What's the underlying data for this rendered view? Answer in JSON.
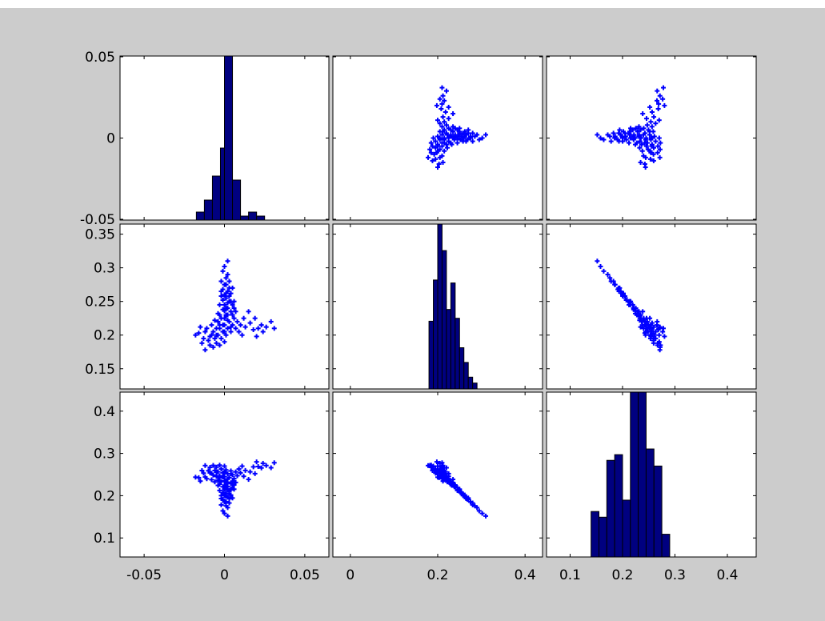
{
  "figure": {
    "background": "#cccccc",
    "axes_background": "#ffffff",
    "histogram_fill": "#000080",
    "histogram_edge": "#000000",
    "marker_color": "#0000ff",
    "marker": "plus"
  },
  "chart_data": {
    "type": "scatter-matrix",
    "title": "",
    "variables": 3,
    "ranges": [
      [
        -0.065,
        0.065
      ],
      [
        -0.04,
        0.44
      ],
      [
        0.055,
        0.455
      ]
    ],
    "row_ticks": [
      [
        {
          "v": -0.05,
          "label": "-0.05"
        },
        {
          "v": 0,
          "label": "0"
        },
        {
          "v": 0.05,
          "label": "0.05"
        }
      ],
      [
        {
          "v": 0.15,
          "label": "0.15"
        },
        {
          "v": 0.2,
          "label": "0.2"
        },
        {
          "v": 0.25,
          "label": "0.25"
        },
        {
          "v": 0.3,
          "label": "0.3"
        },
        {
          "v": 0.35,
          "label": "0.35"
        }
      ],
      [
        {
          "v": 0.1,
          "label": "0.1"
        },
        {
          "v": 0.2,
          "label": "0.2"
        },
        {
          "v": 0.3,
          "label": "0.3"
        },
        {
          "v": 0.4,
          "label": "0.4"
        }
      ]
    ],
    "col_ticks": [
      [
        {
          "v": -0.05,
          "label": "-0.05"
        },
        {
          "v": 0,
          "label": "0"
        },
        {
          "v": 0.05,
          "label": "0.05"
        }
      ],
      [
        {
          "v": 0,
          "label": "0"
        },
        {
          "v": 0.2,
          "label": "0.2"
        },
        {
          "v": 0.4,
          "label": "0.4"
        }
      ],
      [
        {
          "v": 0.1,
          "label": "0.1"
        },
        {
          "v": 0.2,
          "label": "0.2"
        },
        {
          "v": 0.3,
          "label": "0.3"
        },
        {
          "v": 0.4,
          "label": "0.4"
        }
      ]
    ],
    "row_ylims": [
      [
        -0.0505,
        0.0505
      ],
      [
        0.12,
        0.365
      ],
      [
        0.055,
        0.445
      ]
    ],
    "histograms": [
      {
        "var": 0,
        "bin_width": 0.005,
        "bins": [
          {
            "x0": -0.0175,
            "count": 2
          },
          {
            "x0": -0.0125,
            "count": 5
          },
          {
            "x0": -0.0075,
            "count": 11
          },
          {
            "x0": -0.0025,
            "count": 18
          },
          {
            "x0": 0.0,
            "count": 41
          },
          {
            "x0": 0.005,
            "count": 10
          },
          {
            "x0": 0.01,
            "count": 1
          },
          {
            "x0": 0.015,
            "count": 2
          },
          {
            "x0": 0.02,
            "count": 1
          }
        ],
        "max_count": 41
      },
      {
        "var": 1,
        "bin_width": 0.01,
        "bins": [
          {
            "x0": 0.18,
            "count": 23
          },
          {
            "x0": 0.19,
            "count": 37
          },
          {
            "x0": 0.2,
            "count": 56
          },
          {
            "x0": 0.21,
            "count": 47
          },
          {
            "x0": 0.22,
            "count": 27
          },
          {
            "x0": 0.23,
            "count": 36
          },
          {
            "x0": 0.24,
            "count": 24
          },
          {
            "x0": 0.25,
            "count": 14
          },
          {
            "x0": 0.26,
            "count": 9
          },
          {
            "x0": 0.27,
            "count": 4
          },
          {
            "x0": 0.28,
            "count": 2
          }
        ],
        "max_count": 56
      },
      {
        "var": 2,
        "bin_width": 0.015,
        "bins": [
          {
            "x0": 0.14,
            "count": 8
          },
          {
            "x0": 0.155,
            "count": 7
          },
          {
            "x0": 0.17,
            "count": 17
          },
          {
            "x0": 0.185,
            "count": 18
          },
          {
            "x0": 0.2,
            "count": 10
          },
          {
            "x0": 0.215,
            "count": 29
          },
          {
            "x0": 0.23,
            "count": 29
          },
          {
            "x0": 0.245,
            "count": 19
          },
          {
            "x0": 0.26,
            "count": 16
          },
          {
            "x0": 0.275,
            "count": 4
          }
        ],
        "max_count": 29
      }
    ],
    "variable_points": [
      [
        -0.016,
        0.203
      ],
      [
        -0.014,
        0.188
      ],
      [
        -0.013,
        0.195
      ],
      [
        -0.012,
        0.178
      ],
      [
        -0.011,
        0.21
      ],
      [
        -0.01,
        0.192
      ],
      [
        -0.009,
        0.185
      ],
      [
        -0.008,
        0.2
      ],
      [
        -0.008,
        0.215
      ],
      [
        -0.007,
        0.182
      ],
      [
        -0.007,
        0.205
      ],
      [
        -0.006,
        0.195
      ],
      [
        -0.006,
        0.222
      ],
      [
        -0.005,
        0.188
      ],
      [
        -0.005,
        0.21
      ],
      [
        -0.004,
        0.2
      ],
      [
        -0.004,
        0.232
      ],
      [
        -0.003,
        0.185
      ],
      [
        -0.003,
        0.215
      ],
      [
        -0.003,
        0.245
      ],
      [
        -0.002,
        0.195
      ],
      [
        -0.002,
        0.225
      ],
      [
        -0.002,
        0.258
      ],
      [
        -0.001,
        0.205
      ],
      [
        -0.001,
        0.238
      ],
      [
        -0.001,
        0.268
      ],
      [
        0.0,
        0.19
      ],
      [
        0.0,
        0.215
      ],
      [
        0.0,
        0.245
      ],
      [
        0.0,
        0.275
      ],
      [
        0.001,
        0.2
      ],
      [
        0.001,
        0.228
      ],
      [
        0.001,
        0.255
      ],
      [
        0.001,
        0.285
      ],
      [
        0.002,
        0.21
      ],
      [
        0.002,
        0.24
      ],
      [
        0.002,
        0.265
      ],
      [
        0.002,
        0.31
      ],
      [
        0.003,
        0.22
      ],
      [
        0.003,
        0.25
      ],
      [
        0.003,
        0.28
      ],
      [
        0.004,
        0.205
      ],
      [
        0.004,
        0.235
      ],
      [
        0.004,
        0.262
      ],
      [
        0.005,
        0.215
      ],
      [
        0.005,
        0.245
      ],
      [
        0.005,
        0.27
      ],
      [
        0.006,
        0.225
      ],
      [
        0.006,
        0.25
      ],
      [
        0.007,
        0.21
      ],
      [
        0.007,
        0.235
      ],
      [
        0.008,
        0.22
      ],
      [
        0.009,
        0.205
      ],
      [
        0.01,
        0.215
      ],
      [
        0.011,
        0.2
      ],
      [
        0.012,
        0.225
      ],
      [
        0.013,
        0.212
      ],
      [
        0.015,
        0.235
      ],
      [
        0.016,
        0.218
      ],
      [
        0.018,
        0.208
      ],
      [
        0.019,
        0.225
      ],
      [
        0.02,
        0.198
      ],
      [
        0.021,
        0.21
      ],
      [
        0.023,
        0.215
      ],
      [
        0.024,
        0.205
      ],
      [
        0.026,
        0.212
      ],
      [
        0.029,
        0.22
      ],
      [
        0.031,
        0.21
      ],
      [
        -0.018,
        0.2
      ],
      [
        -0.015,
        0.212
      ],
      [
        -0.012,
        0.205
      ],
      [
        -0.009,
        0.198
      ],
      [
        -0.001,
        0.295
      ],
      [
        0.0,
        0.302
      ],
      [
        0.001,
        0.275
      ],
      [
        0.002,
        0.29
      ],
      [
        -0.002,
        0.28
      ],
      [
        0.003,
        0.27
      ],
      [
        0.0,
        0.225
      ],
      [
        -0.001,
        0.215
      ],
      [
        0.001,
        0.24
      ],
      [
        0.002,
        0.23
      ],
      [
        -0.003,
        0.23
      ],
      [
        0.004,
        0.25
      ],
      [
        -0.004,
        0.22
      ],
      [
        0.005,
        0.23
      ],
      [
        -0.005,
        0.2
      ],
      [
        0.006,
        0.24
      ],
      [
        0.0,
        0.26
      ],
      [
        0.001,
        0.262
      ],
      [
        -0.002,
        0.265
      ],
      [
        0.003,
        0.258
      ],
      [
        0.002,
        0.248
      ],
      [
        -0.001,
        0.252
      ],
      [
        0.0,
        0.236
      ],
      [
        0.001,
        0.23
      ],
      [
        0.002,
        0.222
      ],
      [
        -0.003,
        0.21
      ],
      [
        0.004,
        0.212
      ],
      [
        0.0,
        0.205
      ]
    ]
  }
}
